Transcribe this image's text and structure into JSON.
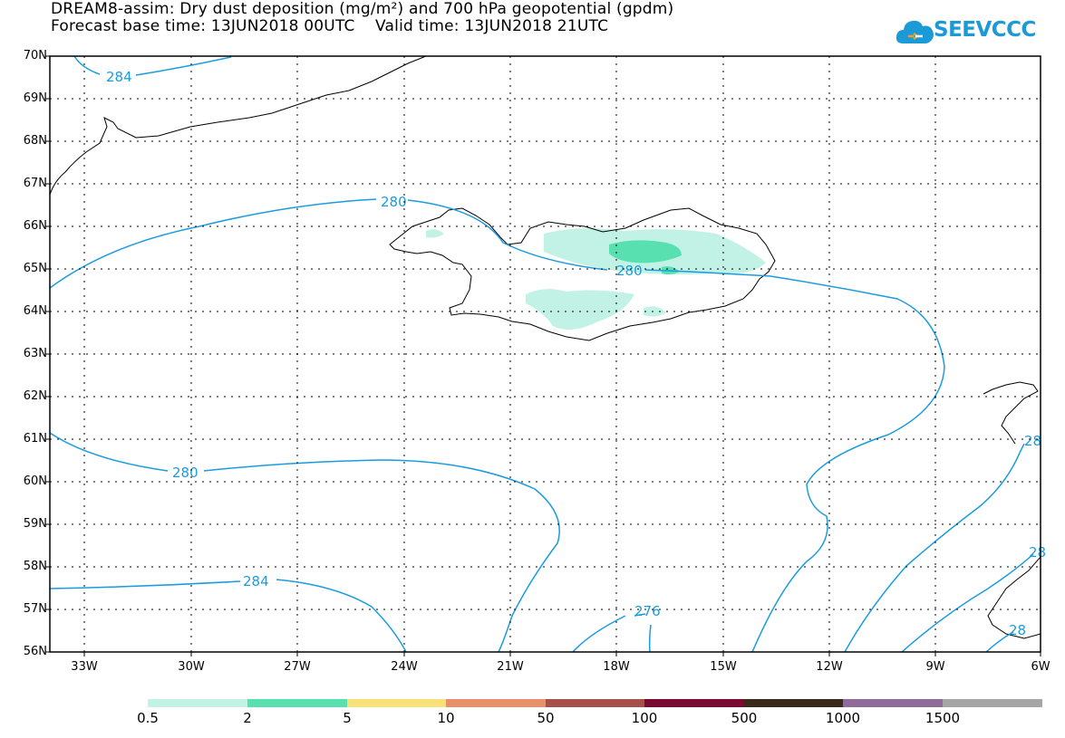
{
  "title_line1": "DREAM8-assim: Dry dust deposition (mg/m²) and 700 hPa geopotential (gpdm)",
  "title_line2": "Forecast base time: 13JUN2018 00UTC    Valid time: 13JUN2018 21UTC",
  "logo_text": "SEEVCCC",
  "latitudes": [
    "70N",
    "69N",
    "68N",
    "67N",
    "66N",
    "65N",
    "64N",
    "63N",
    "62N",
    "61N",
    "60N",
    "59N",
    "58N",
    "57N",
    "56N"
  ],
  "longitudes": [
    "33W",
    "30W",
    "27W",
    "24W",
    "21W",
    "18W",
    "15W",
    "12W",
    "9W",
    "6W"
  ],
  "contour_labels": [
    "284",
    "280",
    "280",
    "280",
    "284",
    "276",
    "28",
    "28",
    "28"
  ],
  "colorbar": {
    "labels": [
      "0.5",
      "2",
      "5",
      "10",
      "50",
      "100",
      "500",
      "1000",
      "1500"
    ],
    "colors": [
      "#c2f2e6",
      "#58e0b0",
      "#f7e27a",
      "#e8906a",
      "#a84f4a",
      "#7a0a32",
      "#3a2a1a",
      "#8f6a9a",
      "#a6a6a6"
    ]
  },
  "colors": {
    "contour": "#1a9be0",
    "dust_light": "#c2f2e6",
    "dust_mid": "#58e0b0",
    "coast": "#000000"
  }
}
